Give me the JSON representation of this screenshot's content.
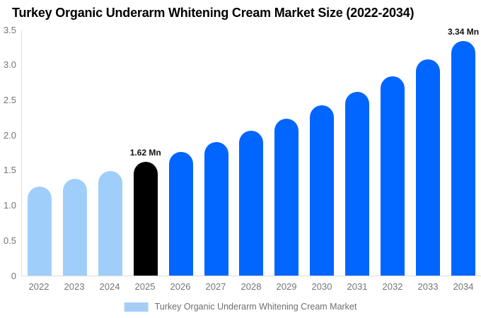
{
  "title": "Turkey Organic Underarm Whitening Cream Market Size (2022-2034)",
  "legend": {
    "label": "Turkey Organic Underarm Whitening Cream Market",
    "swatch_color": "#a6cdf6"
  },
  "colors": {
    "historical": "#a0cefb",
    "highlight": "#000000",
    "forecast": "#0066ff",
    "axis_line": "#dedede",
    "tick_text": "#757575",
    "annotation_text": "#111111"
  },
  "chart_data": {
    "type": "bar",
    "title": "Turkey Organic Underarm Whitening Cream Market Size (2022-2034)",
    "xlabel": "",
    "ylabel": "",
    "unit": "Mn",
    "categories": [
      "2022",
      "2023",
      "2024",
      "2025",
      "2026",
      "2027",
      "2028",
      "2029",
      "2030",
      "2031",
      "2032",
      "2033",
      "2034"
    ],
    "values": [
      1.27,
      1.38,
      1.49,
      1.62,
      1.76,
      1.9,
      2.06,
      2.23,
      2.42,
      2.62,
      2.84,
      3.08,
      3.34
    ],
    "bar_styles": [
      "historical",
      "historical",
      "historical",
      "highlight",
      "forecast",
      "forecast",
      "forecast",
      "forecast",
      "forecast",
      "forecast",
      "forecast",
      "forecast",
      "forecast"
    ],
    "annotations": [
      {
        "category": "2025",
        "text": "1.62 Mn"
      },
      {
        "category": "2034",
        "text": "3.34 Mn"
      }
    ],
    "ylim": [
      0,
      3.5
    ],
    "yticks": [
      "3.5",
      "3.0",
      "2.5",
      "2.0",
      "1.5",
      "1.0",
      "0.5",
      "0"
    ],
    "grid": false,
    "legend_position": "bottom"
  }
}
